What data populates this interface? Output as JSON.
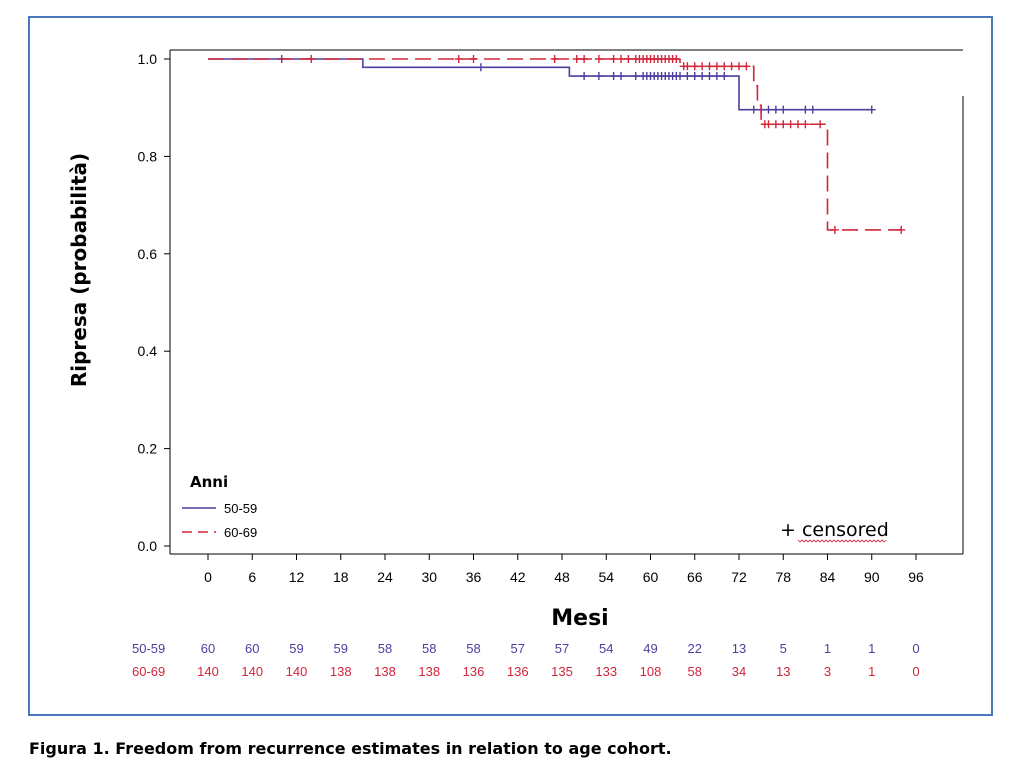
{
  "caption": "Figura 1. Freedom from recurrence estimates in relation to age cohort.",
  "chart_data": {
    "type": "line",
    "subtype": "kaplan-meier-step",
    "ylabel": "Ripresa (probabilità)",
    "xlabel": "Mesi",
    "xlim": [
      -6,
      102
    ],
    "ylim": [
      0,
      1.0
    ],
    "x_ticks": [
      0,
      6,
      12,
      18,
      24,
      30,
      36,
      42,
      48,
      54,
      60,
      66,
      72,
      78,
      84,
      90,
      96
    ],
    "x_tick_labels": [
      "0",
      "6",
      "12",
      "18",
      "24",
      "30",
      "36",
      "42",
      "48",
      "54",
      "60",
      "66",
      "72",
      "78",
      "84",
      "90",
      "96"
    ],
    "y_ticks": [
      0,
      0.2,
      0.4,
      0.6,
      0.8,
      1.0
    ],
    "y_tick_labels": [
      "0.0",
      "0.2",
      "0.4",
      "0.6",
      "0.8",
      "1.0"
    ],
    "legend_title": "Anni",
    "legend_position": "bottom-left",
    "censored_label": "+ censored",
    "series": [
      {
        "name": "50-59",
        "color": "#4b3fa0",
        "dash": "solid",
        "steps": [
          [
            0,
            1.0
          ],
          [
            21,
            0.983
          ],
          [
            49,
            0.965
          ],
          [
            72,
            0.896
          ],
          [
            90,
            0.896
          ]
        ],
        "censored": [
          10,
          37,
          51,
          53,
          55,
          56,
          58,
          59,
          59.5,
          60,
          60.5,
          61,
          61.5,
          62,
          62.5,
          63,
          63.5,
          64,
          65,
          66,
          67,
          68,
          69,
          70,
          74,
          75,
          76,
          77,
          78,
          81,
          82,
          90
        ]
      },
      {
        "name": "60-69",
        "color": "#d2253a",
        "dash": "dashed",
        "steps": [
          [
            0,
            1.0
          ],
          [
            64,
            0.985
          ],
          [
            74,
            0.945
          ],
          [
            74.5,
            0.905
          ],
          [
            75,
            0.866
          ],
          [
            84,
            0.649
          ],
          [
            94,
            0.649
          ]
        ],
        "censored": [
          14,
          34,
          36,
          47,
          50,
          51,
          53,
          55,
          56,
          57,
          58,
          58.5,
          59,
          59.5,
          60,
          60.5,
          61,
          61.5,
          62,
          62.5,
          63,
          63.5,
          64.5,
          65,
          66,
          67,
          68,
          69,
          70,
          71,
          72,
          73,
          75.5,
          76,
          77,
          78,
          79,
          80,
          81,
          83,
          85,
          94
        ]
      }
    ],
    "risk_table": {
      "rows": [
        {
          "name": "50-59",
          "color": "#4b3fa0",
          "values": [
            60,
            60,
            59,
            59,
            58,
            58,
            58,
            57,
            57,
            54,
            49,
            22,
            13,
            5,
            1,
            1,
            0
          ]
        },
        {
          "name": "60-69",
          "color": "#d2253a",
          "values": [
            140,
            140,
            140,
            138,
            138,
            138,
            136,
            136,
            135,
            133,
            108,
            58,
            34,
            13,
            3,
            1,
            0
          ]
        }
      ]
    }
  }
}
